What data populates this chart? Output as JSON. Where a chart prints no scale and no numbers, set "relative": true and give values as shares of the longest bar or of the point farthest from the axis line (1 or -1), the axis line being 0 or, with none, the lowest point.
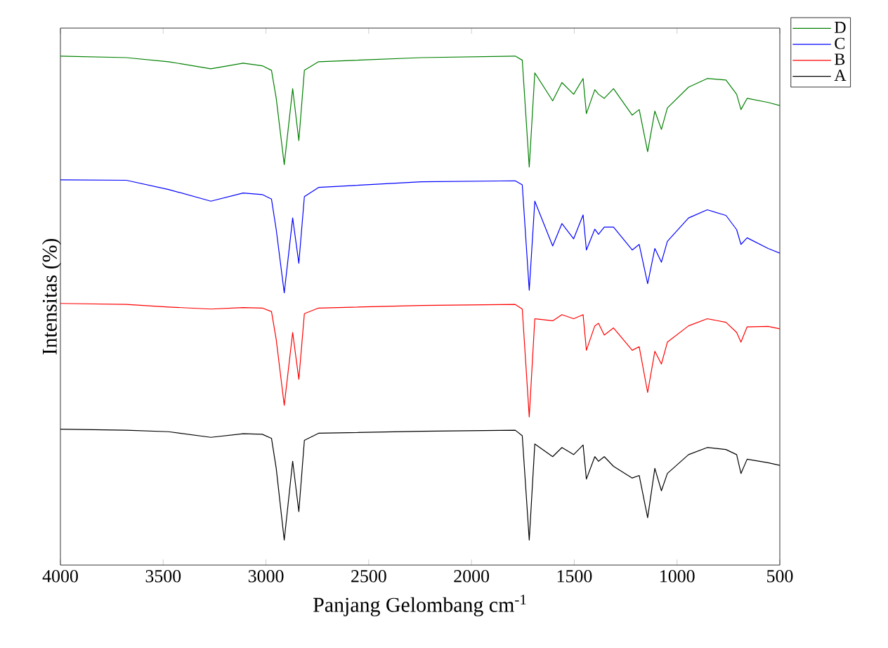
{
  "chart_data": {
    "type": "line",
    "xlabel": "Panjang Gelombang cm$^{-1}$",
    "ylabel": "Intensitas (%)",
    "relative": true,
    "xlim": [
      4000,
      500
    ],
    "xticks": [
      4000,
      3500,
      3000,
      2500,
      2000,
      1500,
      1000,
      500
    ],
    "tick_labels": "x",
    "legend": "top right",
    "line_style": "solid",
    "marker": "none",
    "x": [
      4000,
      3679,
      3474,
      3268,
      3111,
      3018,
      2973,
      2950,
      2911,
      2870,
      2840,
      2813,
      2744,
      2243,
      1787,
      1753,
      1719,
      1692,
      1605,
      1560,
      1503,
      1457,
      1441,
      1400,
      1382,
      1354,
      1309,
      1218,
      1184,
      1143,
      1108,
      1076,
      1047,
      944,
      853,
      762,
      710,
      689,
      659,
      557,
      500
    ],
    "series": [
      {
        "name": "D",
        "color": "#008000",
        "values": [
          1.0,
          0.997,
          0.989,
          0.975,
          0.986,
          0.981,
          0.972,
          0.917,
          0.787,
          0.936,
          0.834,
          0.972,
          0.989,
          0.997,
          1.0,
          0.992,
          0.782,
          0.967,
          0.912,
          0.948,
          0.925,
          0.956,
          0.887,
          0.934,
          0.925,
          0.917,
          0.936,
          0.884,
          0.895,
          0.812,
          0.892,
          0.856,
          0.898,
          0.939,
          0.956,
          0.953,
          0.925,
          0.895,
          0.917,
          0.909,
          0.903
        ]
      },
      {
        "name": "C",
        "color": "#0000ff",
        "values": [
          0.757,
          0.756,
          0.738,
          0.715,
          0.731,
          0.728,
          0.719,
          0.659,
          0.535,
          0.682,
          0.593,
          0.724,
          0.742,
          0.753,
          0.755,
          0.747,
          0.54,
          0.715,
          0.627,
          0.671,
          0.641,
          0.688,
          0.619,
          0.66,
          0.65,
          0.664,
          0.664,
          0.619,
          0.63,
          0.553,
          0.622,
          0.595,
          0.636,
          0.682,
          0.698,
          0.687,
          0.659,
          0.63,
          0.643,
          0.622,
          0.613
        ]
      },
      {
        "name": "B",
        "color": "#ff0000",
        "values": [
          0.514,
          0.512,
          0.507,
          0.503,
          0.506,
          0.505,
          0.498,
          0.443,
          0.314,
          0.457,
          0.365,
          0.494,
          0.505,
          0.51,
          0.512,
          0.503,
          0.291,
          0.484,
          0.48,
          0.492,
          0.484,
          0.492,
          0.422,
          0.47,
          0.475,
          0.452,
          0.466,
          0.422,
          0.429,
          0.339,
          0.42,
          0.395,
          0.438,
          0.47,
          0.484,
          0.477,
          0.457,
          0.438,
          0.468,
          0.469,
          0.464
        ]
      },
      {
        "name": "A",
        "color": "#000000",
        "values": [
          0.267,
          0.265,
          0.262,
          0.251,
          0.258,
          0.257,
          0.249,
          0.19,
          0.049,
          0.204,
          0.105,
          0.245,
          0.259,
          0.263,
          0.265,
          0.254,
          0.049,
          0.238,
          0.213,
          0.231,
          0.217,
          0.236,
          0.169,
          0.213,
          0.204,
          0.213,
          0.194,
          0.171,
          0.176,
          0.093,
          0.19,
          0.146,
          0.18,
          0.217,
          0.231,
          0.227,
          0.217,
          0.18,
          0.208,
          0.201,
          0.196
        ]
      }
    ]
  }
}
